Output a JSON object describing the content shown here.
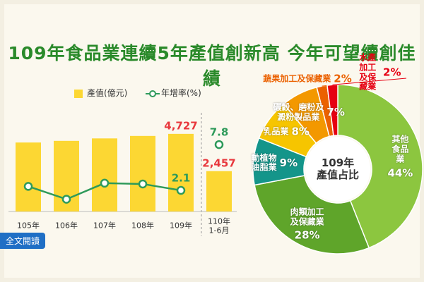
{
  "title": "109年食品業連續5年產值創新高 今年可望續創佳績",
  "button": "全文閱讀",
  "chart_data": [
    {
      "type": "bar-line",
      "categories": [
        "105年",
        "106年",
        "107年",
        "108年",
        "109年",
        "110年\n1-6月"
      ],
      "series": [
        {
          "name": "產值(億元)",
          "type": "bar",
          "color": "#fcd733",
          "label_color": "#e8383d",
          "values": [
            4200,
            4300,
            4450,
            4600,
            4727,
            2457
          ],
          "value_labels": [
            null,
            null,
            null,
            null,
            "4,727",
            "2,457"
          ]
        },
        {
          "name": "年增率(%)",
          "type": "line",
          "color": "#2e9a5a",
          "label_color": "#2e9a5a",
          "values": [
            2.6,
            1.0,
            3.0,
            2.9,
            2.1,
            7.8
          ],
          "value_labels": [
            null,
            null,
            null,
            null,
            "2.1",
            "7.8"
          ]
        }
      ]
    },
    {
      "type": "donut",
      "center_label": "109年\n產值占比",
      "categories": [
        "其他\n食品業",
        "肉類加工\n及保藏業",
        "動植物\n油脂業",
        "乳品業",
        "碾穀、磨粉及\n澱粉製品業",
        "蔬果加工及保藏業",
        "水產加工及保藏業"
      ],
      "values": [
        44,
        28,
        9,
        8,
        7,
        2,
        2
      ],
      "value_labels": [
        "44%",
        "28%",
        "9%",
        "8%",
        "7%",
        "2%",
        "2%"
      ],
      "colors": [
        "#8cc63f",
        "#5fa52a",
        "#14958a",
        "#f6c500",
        "#f39800",
        "#eb6100",
        "#e60012"
      ]
    }
  ]
}
